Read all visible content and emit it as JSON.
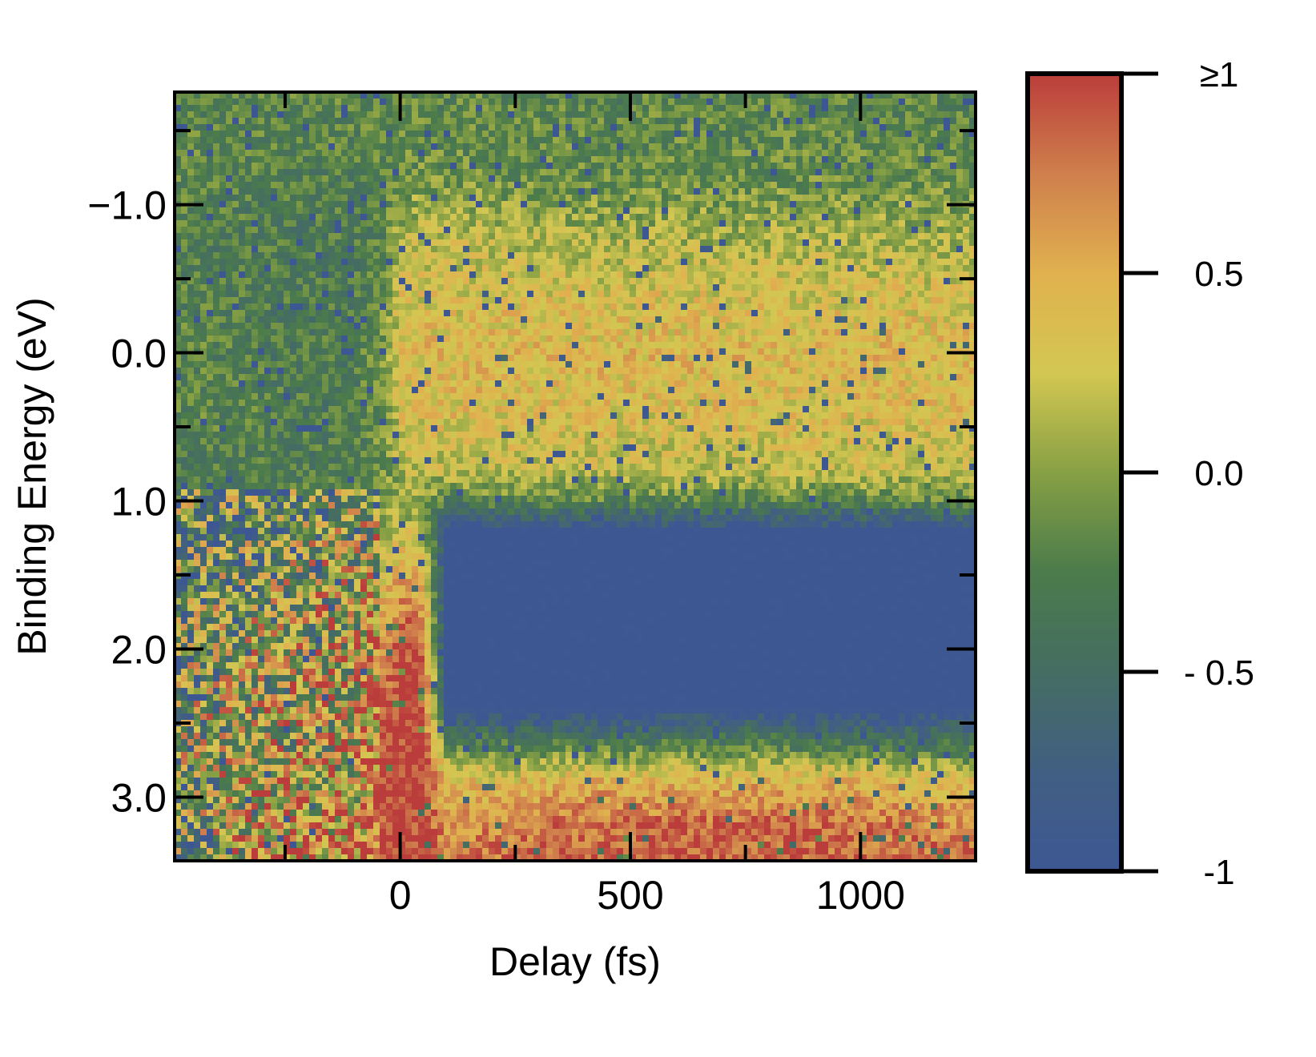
{
  "chart_data": {
    "type": "heatmap",
    "xlabel": "Delay (fs)",
    "ylabel": "Binding Energy (eV)",
    "xlim": [
      -490,
      1250
    ],
    "ylim": [
      -1.76,
      3.43
    ],
    "y_inverted": true,
    "x_ticks": [
      {
        "value": 0,
        "label": "0"
      },
      {
        "value": 500,
        "label": "500"
      },
      {
        "value": 1000,
        "label": "1000"
      }
    ],
    "x_minor_ticks": [
      -250,
      250,
      750
    ],
    "y_ticks": [
      {
        "value": -1,
        "label": "−1.0"
      },
      {
        "value": 0,
        "label": "0.0"
      },
      {
        "value": 1,
        "label": "1.0"
      },
      {
        "value": 2,
        "label": "2.0"
      },
      {
        "value": 3,
        "label": "3.0"
      }
    ],
    "y_minor_ticks": [
      -1.5,
      -0.5,
      0.5,
      1.5,
      2.5
    ],
    "grid": false,
    "colorbar": {
      "range": [
        -1,
        1
      ],
      "ticks": [
        {
          "value": 1,
          "label": "≥1"
        },
        {
          "value": 0.5,
          "label": "0.5"
        },
        {
          "value": 0,
          "label": "0.0"
        },
        {
          "value": -0.5,
          "label": "- 0.5"
        },
        {
          "value": -1,
          "label": "-1"
        }
      ],
      "colormap": [
        {
          "value": -1,
          "color": "#3d5793"
        },
        {
          "value": -0.75,
          "color": "#415f82"
        },
        {
          "value": -0.5,
          "color": "#456d62"
        },
        {
          "value": -0.25,
          "color": "#4b7b4b"
        },
        {
          "value": 0,
          "color": "#87a044"
        },
        {
          "value": 0.25,
          "color": "#d3c752"
        },
        {
          "value": 0.5,
          "color": "#e0b14f"
        },
        {
          "value": 0.75,
          "color": "#cf7f4c"
        },
        {
          "value": 1,
          "color": "#bb3d3b"
        }
      ]
    },
    "delays": [
      -450,
      -300,
      -200,
      -100,
      -30,
      0,
      50,
      100,
      200,
      400,
      600,
      800,
      1000,
      1250
    ],
    "energies": [
      -1.7,
      -1.2,
      -0.8,
      -0.4,
      0.0,
      0.4,
      0.8,
      1.0,
      1.2,
      1.6,
      2.0,
      2.4,
      2.7,
      2.9,
      3.2,
      3.43
    ],
    "values": [
      [
        -0.2,
        -0.2,
        -0.2,
        -0.2,
        -0.2,
        -0.2,
        -0.2,
        -0.2,
        -0.2,
        -0.2,
        -0.2,
        -0.2,
        -0.2,
        -0.2
      ],
      [
        -0.2,
        -0.25,
        -0.25,
        -0.25,
        -0.2,
        -0.1,
        -0.1,
        -0.1,
        -0.15,
        -0.15,
        -0.15,
        -0.15,
        -0.15,
        -0.15
      ],
      [
        -0.25,
        -0.3,
        -0.3,
        -0.3,
        -0.2,
        0.1,
        0.2,
        0.2,
        0.15,
        0.1,
        0.1,
        0.1,
        0.1,
        0.1
      ],
      [
        -0.25,
        -0.3,
        -0.3,
        -0.3,
        -0.1,
        0.3,
        0.3,
        0.3,
        0.3,
        0.3,
        0.3,
        0.3,
        0.3,
        0.3
      ],
      [
        -0.2,
        -0.3,
        -0.3,
        -0.3,
        -0.05,
        0.35,
        0.4,
        0.4,
        0.42,
        0.42,
        0.42,
        0.42,
        0.42,
        0.42
      ],
      [
        -0.2,
        -0.25,
        -0.3,
        -0.3,
        -0.05,
        0.3,
        0.35,
        0.35,
        0.35,
        0.35,
        0.35,
        0.35,
        0.35,
        0.35
      ],
      [
        -0.3,
        -0.3,
        -0.3,
        -0.25,
        -0.1,
        0.15,
        0.2,
        0.2,
        0.2,
        0.2,
        0.2,
        0.2,
        0.2,
        0.2
      ],
      [
        -0.3,
        -0.3,
        -0.2,
        -0.1,
        0.0,
        0.0,
        0.0,
        -0.3,
        -0.2,
        -0.2,
        -0.2,
        -0.2,
        -0.2,
        -0.2
      ],
      [
        -0.2,
        -0.2,
        0.0,
        0.1,
        0.1,
        0.2,
        0.2,
        -1,
        -1,
        -1,
        -1,
        -1,
        -1,
        -1
      ],
      [
        -0.2,
        0.0,
        0.1,
        0.2,
        0.4,
        0.6,
        0.5,
        -1,
        -1,
        -1,
        -1,
        -1,
        -1,
        -1
      ],
      [
        -0.1,
        0.1,
        0.2,
        0.3,
        0.7,
        1,
        0.9,
        -1,
        -1,
        -1,
        -1,
        -1,
        -1,
        -1
      ],
      [
        0.0,
        0.2,
        0.25,
        0.35,
        0.9,
        1,
        1,
        -1,
        -1,
        -1,
        -1,
        -1,
        -1,
        -1
      ],
      [
        0.0,
        0.25,
        0.3,
        0.4,
        1,
        1,
        1,
        0.0,
        -0.1,
        -0.1,
        -0.1,
        -0.1,
        -0.2,
        -0.2
      ],
      [
        0.0,
        0.3,
        0.35,
        0.45,
        1,
        1,
        1,
        0.4,
        0.4,
        0.5,
        0.5,
        0.5,
        0.45,
        0.4
      ],
      [
        -0.2,
        0.5,
        0.5,
        0.55,
        1,
        1,
        1,
        0.6,
        0.7,
        0.8,
        0.85,
        0.85,
        0.8,
        0.7
      ],
      [
        -0.3,
        0.6,
        0.6,
        0.6,
        1,
        1,
        1,
        0.7,
        0.8,
        0.9,
        0.9,
        0.9,
        0.85,
        0.8
      ]
    ]
  }
}
